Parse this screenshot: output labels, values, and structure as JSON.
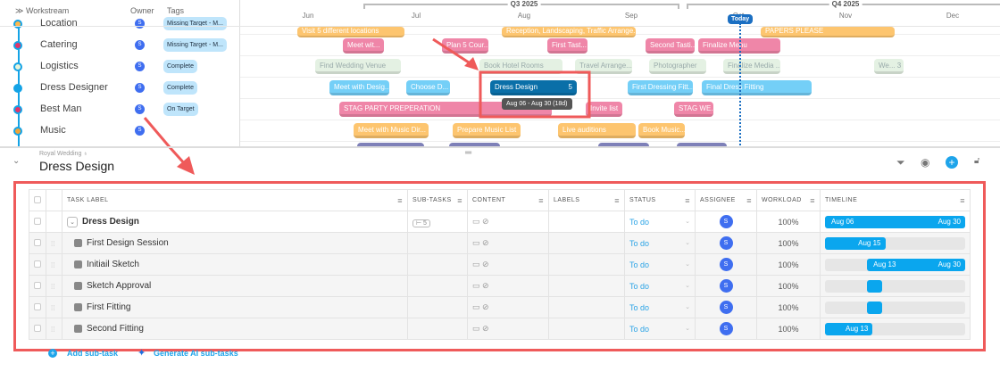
{
  "left_header": {
    "workstream": "Workstream",
    "owner": "Owner",
    "tags": "Tags"
  },
  "workstreams": [
    {
      "name": "Location",
      "owner": "S",
      "tag": "Missing Target - M...",
      "dot": "#fdb84f"
    },
    {
      "name": "Catering",
      "owner": "S",
      "tag": "Missing Target - M...",
      "dot": "#e0356a"
    },
    {
      "name": "Logistics",
      "owner": "S",
      "tag": "Complete",
      "dot": "#e7f3d9"
    },
    {
      "name": "Dress Designer",
      "owner": "S",
      "tag": "Complete",
      "dot": "#14a3e6"
    },
    {
      "name": "Best Man",
      "owner": "S",
      "tag": "On Target",
      "dot": "#e0356a"
    },
    {
      "name": "Music",
      "owner": "S",
      "tag": "",
      "dot": "#f0a43a"
    }
  ],
  "timeline_header": {
    "quarters": [
      "Q3 2025",
      "Q4 2025"
    ],
    "months": [
      "Jun",
      "Jul",
      "Aug",
      "Sep",
      "Oct",
      "Nov",
      "Dec"
    ],
    "today": "Today"
  },
  "gantt_bars": [
    {
      "label": "Visit 5 different locations",
      "color": "orange"
    },
    {
      "label": "Reception, Landscaping, Traffic Arrange...",
      "color": "orange"
    },
    {
      "label": "PAPERS PLEASE",
      "color": "orange"
    },
    {
      "label": "Meet wit...",
      "color": "pink"
    },
    {
      "label": "Plan 5 Cour...",
      "color": "pink"
    },
    {
      "label": "First Tast...",
      "color": "pink"
    },
    {
      "label": "Second Tasti...",
      "color": "pink"
    },
    {
      "label": "Finalize Menu",
      "color": "pink"
    },
    {
      "label": "Find Wedding Venue",
      "color": "green"
    },
    {
      "label": "Book Hotel Rooms",
      "color": "green"
    },
    {
      "label": "Travel Arrange...",
      "color": "green"
    },
    {
      "label": "Photographer",
      "color": "green"
    },
    {
      "label": "Finalize Media ...",
      "color": "green"
    },
    {
      "label": "We...  3",
      "color": "green"
    },
    {
      "label": "Meet with Desig...",
      "color": "blue"
    },
    {
      "label": "Choose D...",
      "color": "blue"
    },
    {
      "label": "Dress Design",
      "count": "5",
      "color": "dark-blue"
    },
    {
      "label": "First Dressing Fitt...",
      "color": "blue"
    },
    {
      "label": "Final Dress Fitting",
      "color": "blue"
    },
    {
      "label": "STAG PARTY PREPERATION",
      "color": "pink"
    },
    {
      "label": "Invite list",
      "color": "pink"
    },
    {
      "label": "STAG WE...",
      "color": "pink"
    },
    {
      "label": "Meet with Music Dir...",
      "color": "orange"
    },
    {
      "label": "Prepare Music List",
      "color": "orange"
    },
    {
      "label": "Live auditions",
      "color": "orange"
    },
    {
      "label": "Book Music...",
      "color": "orange"
    },
    {
      "label": "",
      "color": "purple"
    },
    {
      "label": "",
      "color": "purple"
    },
    {
      "label": "",
      "color": "purple"
    },
    {
      "label": "",
      "color": "purple"
    }
  ],
  "tooltip": "Aug 06 - Aug 30 (18d)",
  "panel": {
    "breadcrumb": "Royal Wedding",
    "title": "Dress Design"
  },
  "columns": [
    "TASK LABEL",
    "SUB-TASKS",
    "CONTENT",
    "LABELS",
    "STATUS",
    "ASSIGNEE",
    "WORKLOAD",
    "TIMELINE"
  ],
  "tasks": [
    {
      "label": "Dress Design",
      "subtasks": "5",
      "status": "To do",
      "assignee": "S",
      "workload": "100%",
      "start": "Aug 06",
      "end": "Aug 30",
      "parent": true
    },
    {
      "label": "First Design Session",
      "status": "To do",
      "assignee": "S",
      "workload": "100%",
      "start": "",
      "end": "Aug 15"
    },
    {
      "label": "Initiail Sketch",
      "status": "To do",
      "assignee": "S",
      "workload": "100%",
      "start": "Aug 13",
      "end": "Aug 30"
    },
    {
      "label": "Sketch Approval",
      "status": "To do",
      "assignee": "S",
      "workload": "100%",
      "start": "",
      "end": ""
    },
    {
      "label": "First Fitting",
      "status": "To do",
      "assignee": "S",
      "workload": "100%",
      "start": "",
      "end": ""
    },
    {
      "label": "Second Fitting",
      "status": "To do",
      "assignee": "S",
      "workload": "100%",
      "start": "",
      "end": "Aug 13"
    }
  ],
  "actions": {
    "add_subtask": "Add sub-task",
    "generate_ai": "Generate AI sub-tasks"
  },
  "colors": {
    "accent": "#0aa6ee",
    "annotation": "#ef5a5a",
    "today": "#1b6fc2"
  }
}
